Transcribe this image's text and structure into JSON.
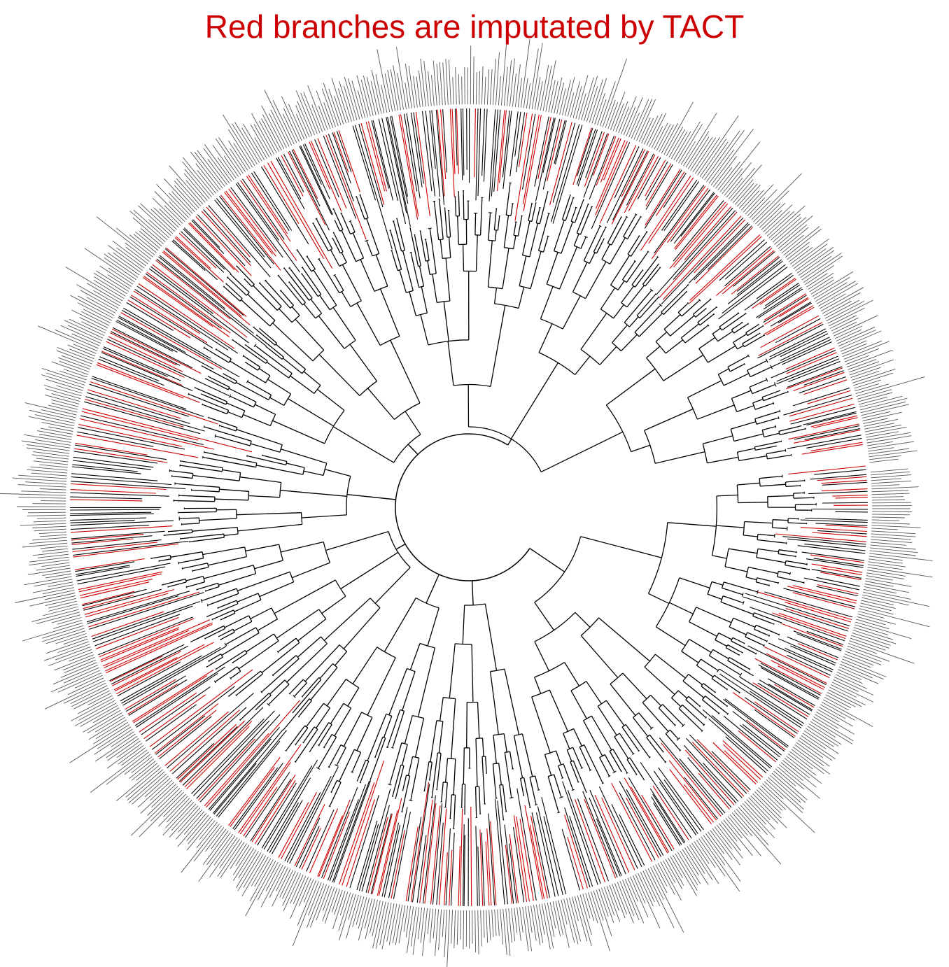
{
  "title": "Red branches are imputated by TACT",
  "colors": {
    "title": "#cc0000",
    "imputed_branch": "#cc0000",
    "original_branch": "#000000",
    "tip_label": "#555555"
  },
  "tree": {
    "layout": "circular",
    "tip_labels": "illegible"
  }
}
